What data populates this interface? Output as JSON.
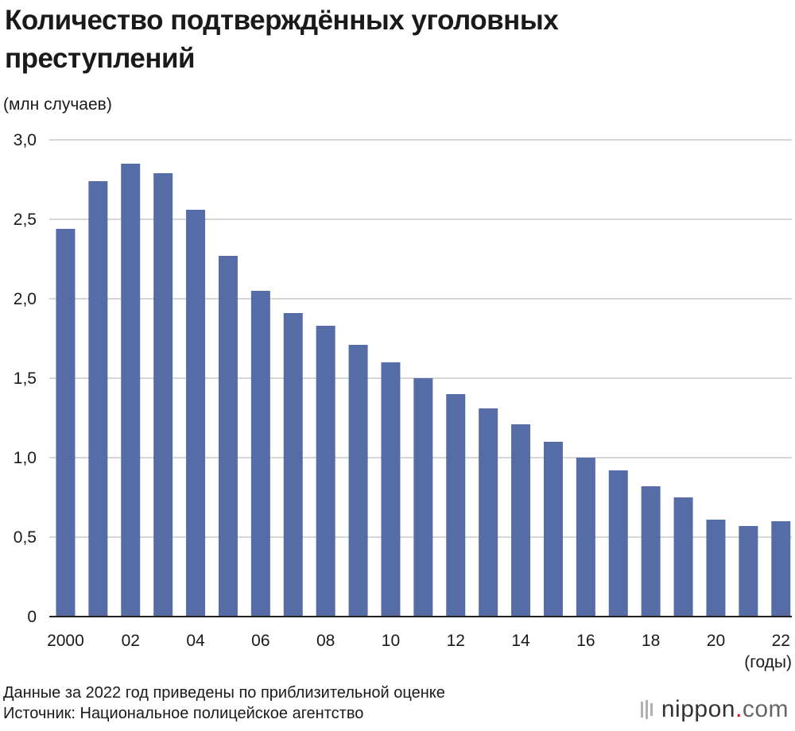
{
  "title": "Количество подтверждённых уголовных преступлений",
  "unit_label": "(млн случаев)",
  "x_unit_label": "(годы)",
  "note": "Данные за 2022 год приведены по приблизительной оценке",
  "source": "Источник: Национальное полицейское агентство",
  "logo": {
    "name": "nippon",
    "dot": ".",
    "tld": "com"
  },
  "colors": {
    "bar": "#566ca6",
    "grid": "#c8c8c8",
    "axis": "#222222"
  },
  "chart_data": {
    "type": "bar",
    "title": "Количество подтверждённых уголовных преступлений",
    "ylabel": "(млн случаев)",
    "xlabel": "(годы)",
    "ylim": [
      0,
      3.0
    ],
    "grid": true,
    "y_ticks": [
      0,
      0.5,
      1.0,
      1.5,
      2.0,
      2.5,
      3.0
    ],
    "y_tick_labels": [
      "0",
      "0,5",
      "1,0",
      "1,5",
      "2,0",
      "2,5",
      "3,0"
    ],
    "x_tick_labels": [
      "2000",
      "",
      "02",
      "",
      "04",
      "",
      "06",
      "",
      "08",
      "",
      "10",
      "",
      "12",
      "",
      "14",
      "",
      "16",
      "",
      "18",
      "",
      "20",
      "",
      "22"
    ],
    "categories": [
      "2000",
      "2001",
      "2002",
      "2003",
      "2004",
      "2005",
      "2006",
      "2007",
      "2008",
      "2009",
      "2010",
      "2011",
      "2012",
      "2013",
      "2014",
      "2015",
      "2016",
      "2017",
      "2018",
      "2019",
      "2020",
      "2021",
      "2022"
    ],
    "values": [
      2.44,
      2.74,
      2.85,
      2.79,
      2.56,
      2.27,
      2.05,
      1.91,
      1.83,
      1.71,
      1.6,
      1.5,
      1.4,
      1.31,
      1.21,
      1.1,
      1.0,
      0.92,
      0.82,
      0.75,
      0.61,
      0.57,
      0.6
    ]
  }
}
